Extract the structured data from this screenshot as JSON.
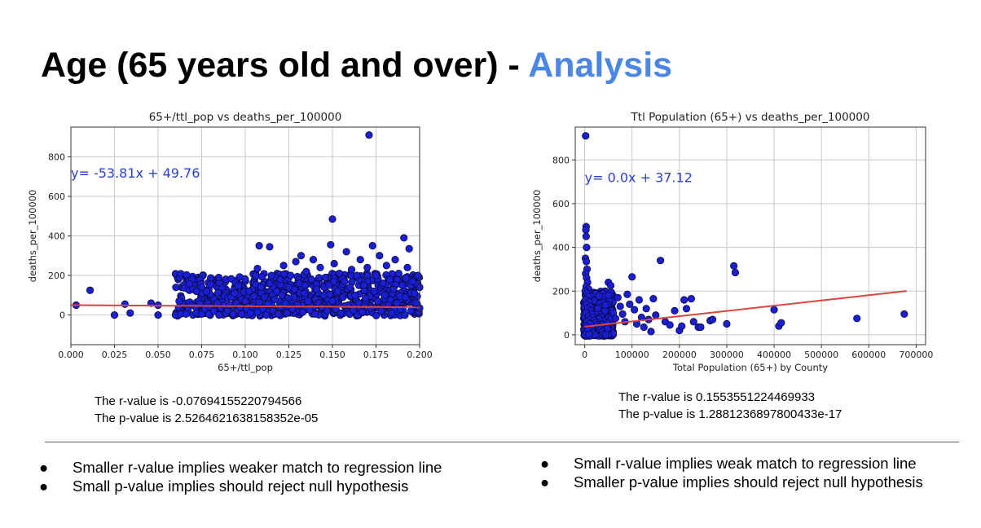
{
  "slide": {
    "title_main": "Age (65 years old and over) - ",
    "title_accent": "Analysis",
    "accent_color": "#4a86e8"
  },
  "chart_data": [
    {
      "type": "scatter",
      "title": "65+/ttl_pop vs deaths_per_100000",
      "xlabel": "65+/ttl_pop",
      "ylabel": "deaths_per_100000",
      "xlim": [
        0.0,
        0.2
      ],
      "ylim": [
        -150,
        950
      ],
      "xticks": [
        0.0,
        0.025,
        0.05,
        0.075,
        0.1,
        0.125,
        0.15,
        0.175,
        0.2
      ],
      "xtick_labels": [
        "0.000",
        "0.025",
        "0.050",
        "0.075",
        "0.100",
        "0.125",
        "0.150",
        "0.175",
        "0.200"
      ],
      "yticks": [
        0,
        200,
        400,
        600,
        800
      ],
      "ytick_labels": [
        "0",
        "200",
        "400",
        "600",
        "800"
      ],
      "grid": true,
      "regression": {
        "slope": -53.81,
        "intercept": 49.76,
        "x_range": [
          0.0,
          0.2
        ],
        "color": "#d9453d"
      },
      "equation_label": "y= -53.81x + 49.76",
      "equation_anchor": [
        0.0,
        720
      ],
      "marker_color": "#1a1fd6",
      "points": [
        [
          0.003,
          50
        ],
        [
          0.011,
          125
        ],
        [
          0.025,
          0
        ],
        [
          0.031,
          55
        ],
        [
          0.034,
          10
        ],
        [
          0.046,
          60
        ],
        [
          0.05,
          0
        ],
        [
          0.05,
          50
        ],
        [
          0.06,
          0
        ],
        [
          0.063,
          5
        ],
        [
          0.066,
          5
        ],
        [
          0.068,
          125
        ],
        [
          0.07,
          0
        ],
        [
          0.072,
          10
        ],
        [
          0.074,
          55
        ],
        [
          0.075,
          5
        ],
        [
          0.07,
          130
        ],
        [
          0.072,
          120
        ],
        [
          0.075,
          140
        ],
        [
          0.077,
          30
        ],
        [
          0.079,
          5
        ],
        [
          0.08,
          155
        ],
        [
          0.08,
          40
        ],
        [
          0.082,
          20
        ],
        [
          0.084,
          60
        ],
        [
          0.085,
          0
        ],
        [
          0.086,
          35
        ],
        [
          0.088,
          50
        ],
        [
          0.089,
          10
        ],
        [
          0.09,
          85
        ],
        [
          0.09,
          25
        ],
        [
          0.091,
          50
        ],
        [
          0.092,
          90
        ],
        [
          0.093,
          5
        ],
        [
          0.094,
          110
        ],
        [
          0.095,
          60
        ],
        [
          0.096,
          25
        ],
        [
          0.097,
          40
        ],
        [
          0.098,
          5
        ],
        [
          0.098,
          80
        ],
        [
          0.1,
          180
        ],
        [
          0.1,
          70
        ],
        [
          0.101,
          30
        ],
        [
          0.102,
          120
        ],
        [
          0.103,
          10
        ],
        [
          0.104,
          45
        ],
        [
          0.105,
          95
        ],
        [
          0.106,
          200
        ],
        [
          0.107,
          235
        ],
        [
          0.107,
          15
        ],
        [
          0.108,
          350
        ],
        [
          0.108,
          65
        ],
        [
          0.109,
          140
        ],
        [
          0.11,
          30
        ],
        [
          0.111,
          90
        ],
        [
          0.112,
          0
        ],
        [
          0.113,
          55
        ],
        [
          0.114,
          345
        ],
        [
          0.114,
          160
        ],
        [
          0.115,
          200
        ],
        [
          0.116,
          20
        ],
        [
          0.117,
          80
        ],
        [
          0.118,
          120
        ],
        [
          0.119,
          5
        ],
        [
          0.12,
          180
        ],
        [
          0.12,
          40
        ],
        [
          0.121,
          100
        ],
        [
          0.122,
          250
        ],
        [
          0.123,
          60
        ],
        [
          0.124,
          10
        ],
        [
          0.125,
          140
        ],
        [
          0.126,
          200
        ],
        [
          0.127,
          30
        ],
        [
          0.128,
          90
        ],
        [
          0.129,
          270
        ],
        [
          0.13,
          50
        ],
        [
          0.131,
          160
        ],
        [
          0.132,
          300
        ],
        [
          0.133,
          15
        ],
        [
          0.134,
          110
        ],
        [
          0.135,
          220
        ],
        [
          0.136,
          70
        ],
        [
          0.137,
          25
        ],
        [
          0.138,
          180
        ],
        [
          0.139,
          280
        ],
        [
          0.14,
          5
        ],
        [
          0.141,
          130
        ],
        [
          0.142,
          60
        ],
        [
          0.143,
          240
        ],
        [
          0.144,
          40
        ],
        [
          0.145,
          100
        ],
        [
          0.146,
          190
        ],
        [
          0.147,
          20
        ],
        [
          0.148,
          150
        ],
        [
          0.149,
          355
        ],
        [
          0.15,
          485
        ],
        [
          0.15,
          70
        ],
        [
          0.151,
          260
        ],
        [
          0.152,
          30
        ],
        [
          0.153,
          120
        ],
        [
          0.154,
          210
        ],
        [
          0.155,
          10
        ],
        [
          0.156,
          90
        ],
        [
          0.157,
          170
        ],
        [
          0.158,
          320
        ],
        [
          0.159,
          50
        ],
        [
          0.16,
          140
        ],
        [
          0.161,
          230
        ],
        [
          0.162,
          25
        ],
        [
          0.163,
          100
        ],
        [
          0.164,
          200
        ],
        [
          0.165,
          60
        ],
        [
          0.166,
          280
        ],
        [
          0.167,
          15
        ],
        [
          0.168,
          150
        ],
        [
          0.169,
          85
        ],
        [
          0.17,
          240
        ],
        [
          0.171,
          910
        ],
        [
          0.172,
          35
        ],
        [
          0.173,
          350
        ],
        [
          0.174,
          120
        ],
        [
          0.175,
          200
        ],
        [
          0.176,
          70
        ],
        [
          0.177,
          300
        ],
        [
          0.178,
          20
        ],
        [
          0.179,
          160
        ],
        [
          0.18,
          100
        ],
        [
          0.181,
          250
        ],
        [
          0.182,
          50
        ],
        [
          0.183,
          180
        ],
        [
          0.184,
          10
        ],
        [
          0.185,
          130
        ],
        [
          0.186,
          280
        ],
        [
          0.187,
          60
        ],
        [
          0.188,
          210
        ],
        [
          0.189,
          30
        ],
        [
          0.19,
          150
        ],
        [
          0.191,
          390
        ],
        [
          0.192,
          90
        ],
        [
          0.193,
          240
        ],
        [
          0.194,
          335
        ],
        [
          0.195,
          20
        ],
        [
          0.196,
          170
        ],
        [
          0.197,
          110
        ],
        [
          0.198,
          60
        ],
        [
          0.199,
          200
        ],
        [
          0.2,
          35
        ],
        [
          0.2,
          140
        ]
      ],
      "dense_band": {
        "x_range": [
          0.06,
          0.2
        ],
        "y_range": [
          -5,
          210
        ],
        "count": 650
      }
    },
    {
      "type": "scatter",
      "title": "Ttl Population (65+) vs deaths_per_100000",
      "xlabel": "Total Population (65+) by County",
      "ylabel": "deaths_per_100000",
      "xlim": [
        -20000,
        720000
      ],
      "ylim": [
        -45,
        950
      ],
      "xticks": [
        0,
        100000,
        200000,
        300000,
        400000,
        500000,
        600000,
        700000
      ],
      "xtick_labels": [
        "0",
        "100000",
        "200000",
        "300000",
        "400000",
        "500000",
        "600000",
        "700000"
      ],
      "yticks": [
        0,
        200,
        400,
        600,
        800
      ],
      "ytick_labels": [
        "0",
        "200",
        "400",
        "600",
        "800"
      ],
      "grid": true,
      "regression": {
        "slope": 0.00024,
        "intercept": 37.12,
        "x_range": [
          0,
          680000
        ],
        "color": "#d9453d"
      },
      "equation_label": "y= 0.0x + 37.12",
      "equation_anchor": [
        0,
        720
      ],
      "marker_color": "#1a1fd6",
      "points": [
        [
          2000,
          910
        ],
        [
          3000,
          495
        ],
        [
          2500,
          480
        ],
        [
          3000,
          450
        ],
        [
          4000,
          400
        ],
        [
          1500,
          350
        ],
        [
          3500,
          335
        ],
        [
          5000,
          300
        ],
        [
          2000,
          280
        ],
        [
          4000,
          260
        ],
        [
          6000,
          240
        ],
        [
          3000,
          220
        ],
        [
          8000,
          210
        ],
        [
          1000,
          200
        ],
        [
          5000,
          190
        ],
        [
          7000,
          175
        ],
        [
          2000,
          160
        ],
        [
          9000,
          150
        ],
        [
          4000,
          140
        ],
        [
          11000,
          130
        ],
        [
          6000,
          120
        ],
        [
          13000,
          110
        ],
        [
          3000,
          100
        ],
        [
          15000,
          95
        ],
        [
          8000,
          85
        ],
        [
          17000,
          80
        ],
        [
          10000,
          70
        ],
        [
          20000,
          65
        ],
        [
          5000,
          60
        ],
        [
          23000,
          55
        ],
        [
          12000,
          50
        ],
        [
          26000,
          45
        ],
        [
          2000,
          40
        ],
        [
          30000,
          35
        ],
        [
          14000,
          30
        ],
        [
          33000,
          25
        ],
        [
          7000,
          20
        ],
        [
          37000,
          15
        ],
        [
          18000,
          10
        ],
        [
          40000,
          5
        ],
        [
          1000,
          0
        ],
        [
          22000,
          0
        ],
        [
          45000,
          0
        ],
        [
          9000,
          2
        ],
        [
          50000,
          240
        ],
        [
          55000,
          225
        ],
        [
          60000,
          100
        ],
        [
          65000,
          75
        ],
        [
          70000,
          170
        ],
        [
          75000,
          130
        ],
        [
          80000,
          95
        ],
        [
          85000,
          60
        ],
        [
          90000,
          185
        ],
        [
          95000,
          140
        ],
        [
          100000,
          265
        ],
        [
          105000,
          115
        ],
        [
          110000,
          50
        ],
        [
          115000,
          160
        ],
        [
          120000,
          80
        ],
        [
          125000,
          35
        ],
        [
          130000,
          120
        ],
        [
          135000,
          70
        ],
        [
          140000,
          15
        ],
        [
          145000,
          165
        ],
        [
          150000,
          90
        ],
        [
          160000,
          340
        ],
        [
          170000,
          60
        ],
        [
          180000,
          45
        ],
        [
          190000,
          110
        ],
        [
          200000,
          20
        ],
        [
          205000,
          40
        ],
        [
          210000,
          160
        ],
        [
          215000,
          120
        ],
        [
          225000,
          165
        ],
        [
          230000,
          60
        ],
        [
          240000,
          35
        ],
        [
          245000,
          35
        ],
        [
          265000,
          65
        ],
        [
          270000,
          70
        ],
        [
          300000,
          50
        ],
        [
          315000,
          315
        ],
        [
          318000,
          285
        ],
        [
          400000,
          115
        ],
        [
          410000,
          40
        ],
        [
          415000,
          55
        ],
        [
          575000,
          75
        ],
        [
          675000,
          95
        ]
      ],
      "dense_band": {
        "x_range": [
          -2000,
          60000
        ],
        "y_range": [
          -5,
          200
        ],
        "count": 500
      }
    }
  ],
  "stats_left": {
    "r_value": "The r-value is -0.07694155220794566",
    "p_value": "The p-value is 2.5264621638158352e-05"
  },
  "stats_right": {
    "r_value": "The r-value is 0.1553551224469933",
    "p_value": "The p-value is 1.2881236897800433e-17"
  },
  "bullets_left": [
    "Smaller r-value implies weaker match to regression line",
    "Small p-value implies should reject null hypothesis"
  ],
  "bullets_right": [
    "Small r-value implies weak match to regression line",
    "Smaller p-value implies should reject null hypothesis"
  ],
  "bullet_glyph": "●"
}
